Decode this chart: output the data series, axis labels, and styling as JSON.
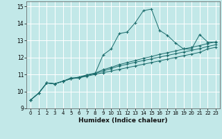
{
  "xlabel": "Humidex (Indice chaleur)",
  "bg_color": "#c2e8e8",
  "line_color": "#1a6b6b",
  "grid_color": "#ffffff",
  "xlim": [
    -0.5,
    23.5
  ],
  "ylim": [
    9.0,
    15.3
  ],
  "yticks": [
    9,
    10,
    11,
    12,
    13,
    14,
    15
  ],
  "xticks": [
    0,
    1,
    2,
    3,
    4,
    5,
    6,
    7,
    8,
    9,
    10,
    11,
    12,
    13,
    14,
    15,
    16,
    17,
    18,
    19,
    20,
    21,
    22,
    23
  ],
  "series": [
    [
      9.5,
      9.9,
      10.5,
      10.45,
      10.6,
      10.8,
      10.8,
      10.95,
      11.05,
      12.15,
      12.5,
      13.4,
      13.5,
      14.05,
      14.75,
      14.85,
      13.6,
      13.3,
      12.85,
      12.5,
      12.5,
      13.35,
      12.9,
      12.9
    ],
    [
      9.5,
      9.9,
      10.5,
      10.45,
      10.6,
      10.75,
      10.8,
      10.9,
      11.0,
      11.1,
      11.2,
      11.3,
      11.4,
      11.5,
      11.6,
      11.7,
      11.8,
      11.9,
      12.0,
      12.1,
      12.2,
      12.3,
      12.5,
      12.6
    ],
    [
      9.5,
      9.9,
      10.5,
      10.45,
      10.6,
      10.75,
      10.82,
      10.95,
      11.05,
      11.2,
      11.35,
      11.5,
      11.6,
      11.72,
      11.82,
      11.92,
      12.02,
      12.12,
      12.22,
      12.32,
      12.42,
      12.52,
      12.65,
      12.75
    ],
    [
      9.5,
      9.9,
      10.5,
      10.45,
      10.6,
      10.75,
      10.85,
      10.98,
      11.08,
      11.28,
      11.42,
      11.58,
      11.7,
      11.82,
      11.95,
      12.05,
      12.18,
      12.28,
      12.38,
      12.5,
      12.6,
      12.7,
      12.82,
      12.92
    ]
  ]
}
